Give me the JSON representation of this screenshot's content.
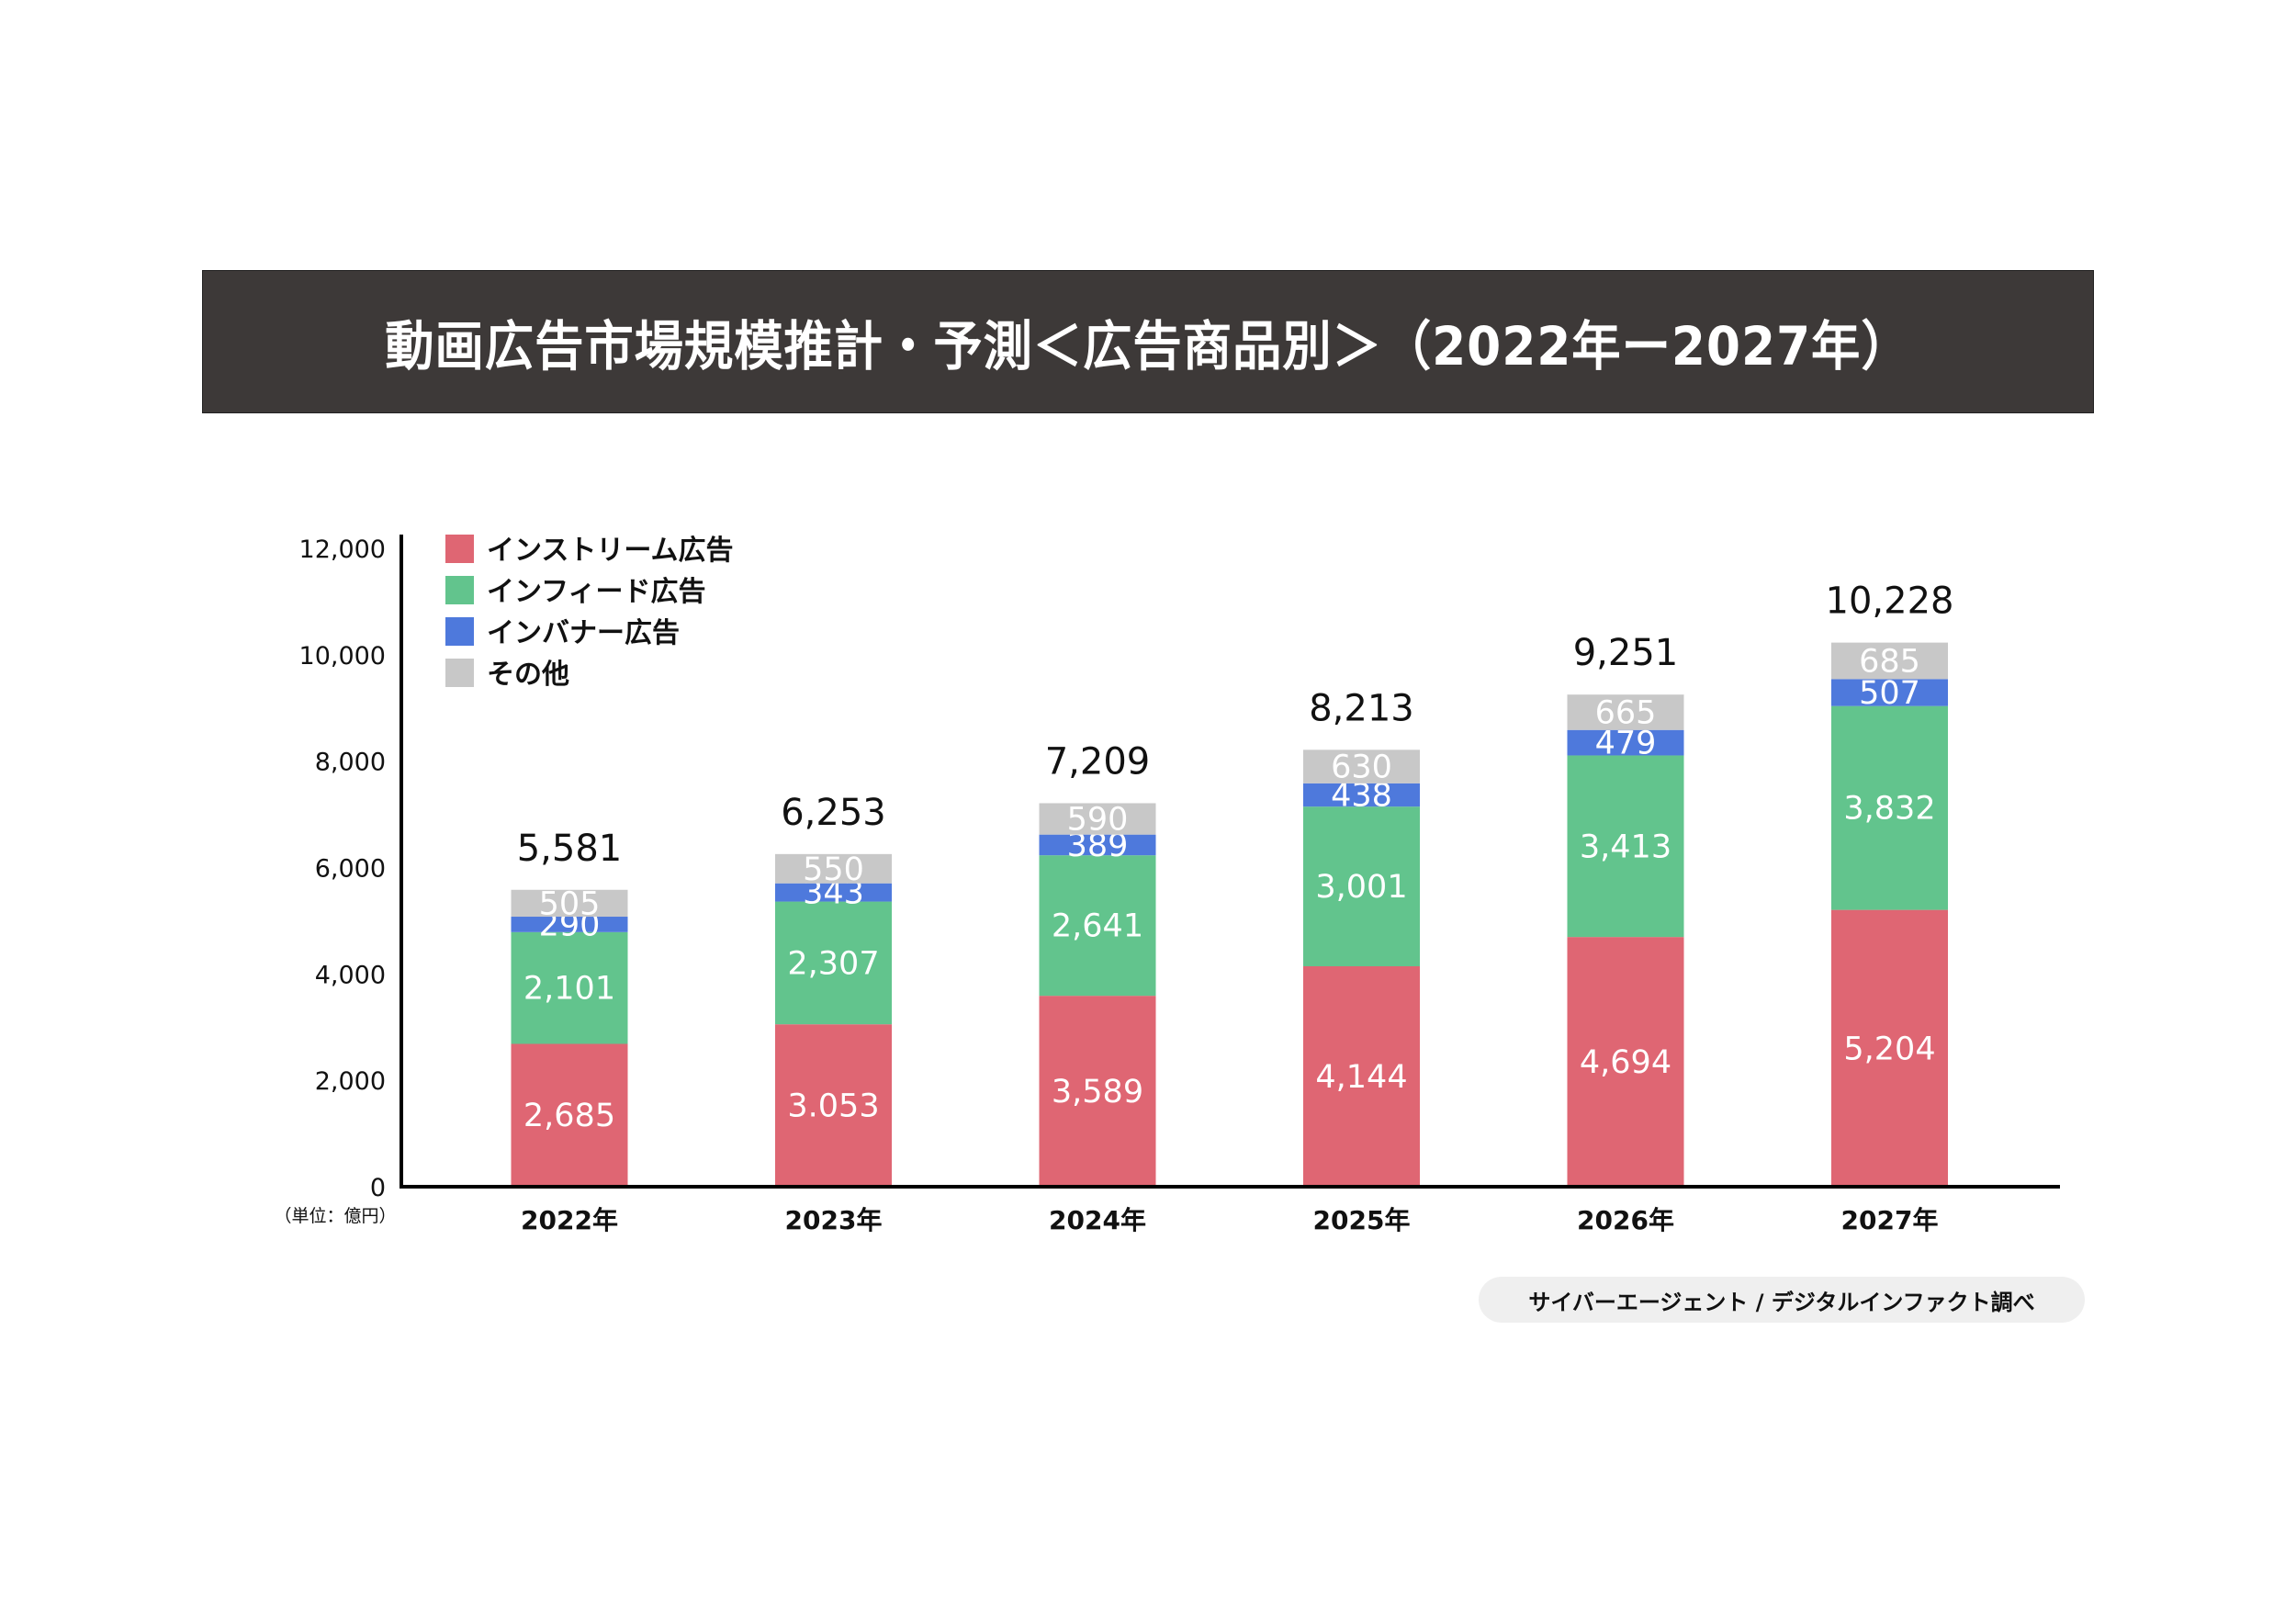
{
  "header": {
    "title": "動画広告市場規模推計・予測＜広告商品別＞（2022年ー2027年）"
  },
  "source": "サイバーエージェント / デジタルインファクト調べ",
  "colors": {
    "banner": "#3d3938",
    "instream": "#df6673",
    "infeed": "#62c48d",
    "inbanner": "#4e79dc",
    "other": "#c8c8c8"
  },
  "chart_data": {
    "type": "bar",
    "stacked": true,
    "title": "動画広告市場規模推計・予測＜広告商品別＞（2022年ー2027年）",
    "xlabel": "",
    "ylabel": "",
    "unit_label": "（単位：億円）",
    "ylim": [
      0,
      12000
    ],
    "yticks": [
      0,
      2000,
      4000,
      6000,
      8000,
      10000,
      12000
    ],
    "ytick_labels": [
      "0",
      "2,000",
      "4,000",
      "6,000",
      "8,000",
      "10,000",
      "12,000"
    ],
    "grid": false,
    "legend_position": "top-left",
    "categories": [
      "2022年",
      "2023年",
      "2024年",
      "2025年",
      "2026年",
      "2027年"
    ],
    "series": [
      {
        "name": "インストリーム広告",
        "color": "#df6673",
        "values": [
          2685,
          3053,
          3589,
          4144,
          4694,
          5204
        ],
        "labels": [
          "2,685",
          "3.053",
          "3,589",
          "4,144",
          "4,694",
          "5,204"
        ]
      },
      {
        "name": "インフィード広告",
        "color": "#62c48d",
        "values": [
          2101,
          2307,
          2641,
          3001,
          3413,
          3832
        ],
        "labels": [
          "2,101",
          "2,307",
          "2,641",
          "3,001",
          "3,413",
          "3,832"
        ]
      },
      {
        "name": "インバナー広告",
        "color": "#4e79dc",
        "values": [
          290,
          343,
          389,
          438,
          479,
          507
        ],
        "labels": [
          "290",
          "343",
          "389",
          "438",
          "479",
          "507"
        ]
      },
      {
        "name": "その他",
        "color": "#c8c8c8",
        "values": [
          505,
          550,
          590,
          630,
          665,
          685
        ],
        "labels": [
          "505",
          "550",
          "590",
          "630",
          "665",
          "685"
        ]
      }
    ],
    "totals": [
      5581,
      6253,
      7209,
      8213,
      9251,
      10228
    ],
    "total_labels": [
      "5,581",
      "6,253",
      "7,209",
      "8,213",
      "9,251",
      "10,228"
    ]
  }
}
